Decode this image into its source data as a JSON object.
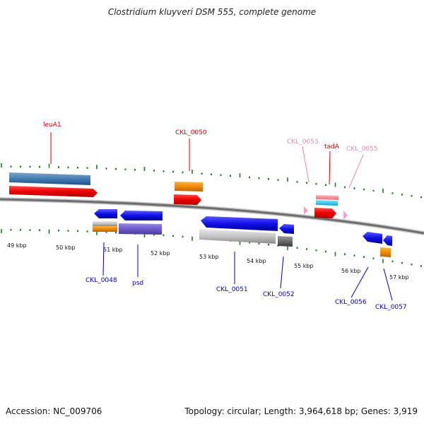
{
  "title": "Clostridium kluyveri DSM 555, complete genome",
  "footer": {
    "accession_label": "Accession: ",
    "accession": "NC_009706",
    "topology_label": "Topology: ",
    "topology": "circular",
    "length_label": "; Length: ",
    "length": "3,964,618 bp",
    "genes_label": "; Genes: ",
    "genes": "3,919"
  },
  "colors": {
    "forward_label": "#cc0000",
    "reverse_label": "#0000aa",
    "pseudo_label": "#e887b0",
    "ticks": "#1f7a1f",
    "backbone": "#808080"
  },
  "axis": {
    "unit": "kbp",
    "ticks": [
      "49 kbp",
      "50 kbp",
      "51 kbp",
      "52 kbp",
      "53 kbp",
      "54 kbp",
      "55 kbp",
      "56 kbp",
      "57 kbp"
    ]
  },
  "genes_forward": [
    {
      "name": "leuA1",
      "color": "#e8000b",
      "strand": "+"
    },
    {
      "name": "CKL_0050",
      "color": "#e8000b",
      "strand": "+"
    },
    {
      "name": "CKL_0053",
      "color": "#f2a6c8",
      "strand": "+"
    },
    {
      "name": "tadA",
      "color": "#e8000b",
      "strand": "+"
    },
    {
      "name": "CKL_0055",
      "color": "#f2a6c8",
      "strand": "+"
    }
  ],
  "genes_reverse": [
    {
      "name": "CKL_0048",
      "color": "#1010e0",
      "strand": "-"
    },
    {
      "name": "psd",
      "color": "#1010e0",
      "strand": "-"
    },
    {
      "name": "CKL_0051",
      "color": "#1010e0",
      "strand": "-"
    },
    {
      "name": "CKL_0052",
      "color": "#1010e0",
      "strand": "-"
    },
    {
      "name": "CKL_0056",
      "color": "#1010e0",
      "strand": "-"
    },
    {
      "name": "CKL_0057",
      "color": "#1010e0",
      "strand": "-"
    }
  ]
}
